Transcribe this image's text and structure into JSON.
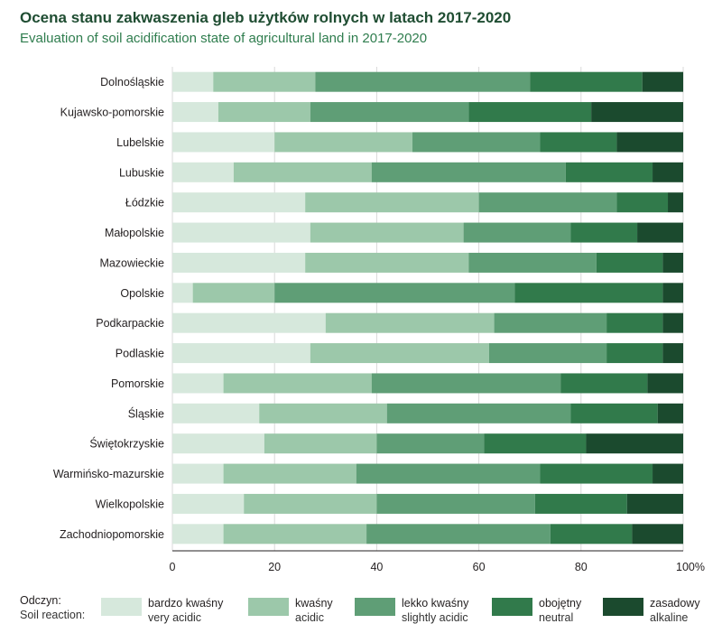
{
  "title": "Ocena stanu zakwaszenia gleb użytków rolnych w latach 2017-2020",
  "subtitle": "Evaluation of soil acidification state of agricultural land in 2017-2020",
  "legend": {
    "heading_pl": "Odczyn:",
    "heading_en": "Soil reaction:"
  },
  "chart_data": {
    "type": "bar",
    "orientation": "horizontal",
    "stacked": true,
    "percent": true,
    "categories": [
      "Dolnośląskie",
      "Kujawsko-pomorskie",
      "Lubelskie",
      "Lubuskie",
      "Łódzkie",
      "Małopolskie",
      "Mazowieckie",
      "Opolskie",
      "Podkarpackie",
      "Podlaskie",
      "Pomorskie",
      "Śląskie",
      "Świętokrzyskie",
      "Warmińsko-mazurskie",
      "Wielkopolskie",
      "Zachodniopomorskie"
    ],
    "series": [
      {
        "name": "bardzo kwaśny",
        "name_en": "very acidic",
        "color": "#d6e8dc",
        "values": [
          8,
          9,
          20,
          12,
          26,
          27,
          26,
          4,
          30,
          27,
          10,
          17,
          18,
          10,
          14,
          10
        ]
      },
      {
        "name": "kwaśny",
        "name_en": "acidic",
        "color": "#9cc8aa",
        "values": [
          20,
          18,
          27,
          27,
          34,
          30,
          32,
          16,
          33,
          35,
          29,
          25,
          22,
          26,
          26,
          28
        ]
      },
      {
        "name": "lekko kwaśny",
        "name_en": "slightly acidic",
        "color": "#5f9e76",
        "values": [
          42,
          31,
          25,
          38,
          27,
          21,
          25,
          47,
          22,
          23,
          37,
          36,
          21,
          36,
          31,
          36
        ]
      },
      {
        "name": "obojętny",
        "name_en": "neutral",
        "color": "#317a4b",
        "values": [
          22,
          24,
          15,
          17,
          10,
          13,
          13,
          29,
          11,
          11,
          17,
          17,
          20,
          22,
          18,
          16
        ]
      },
      {
        "name": "zasadowy",
        "name_en": "alkaline",
        "color": "#1b4a2e",
        "values": [
          8,
          18,
          13,
          6,
          3,
          9,
          4,
          4,
          4,
          4,
          7,
          5,
          19,
          6,
          11,
          10
        ]
      }
    ],
    "xlim": [
      0,
      100
    ],
    "xticks": [
      "0",
      "20",
      "40",
      "60",
      "80",
      "100%"
    ],
    "grid": true,
    "legend_position": "bottom"
  }
}
